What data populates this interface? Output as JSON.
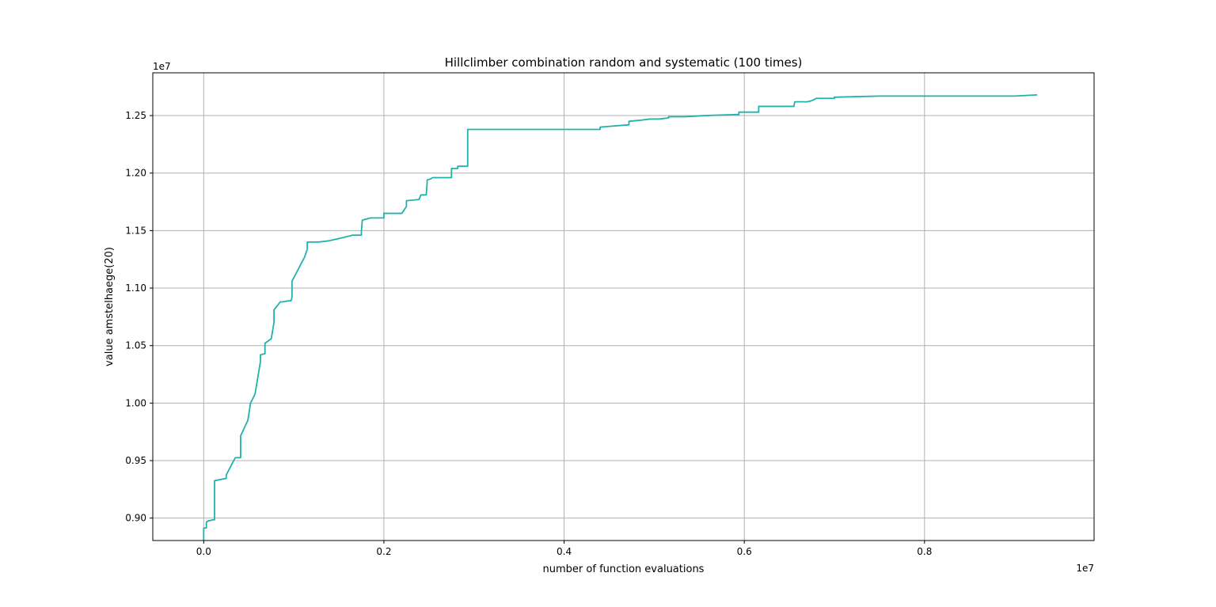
{
  "chart_data": {
    "type": "line",
    "title": "Hillclimber combination random and systematic (100 times)",
    "xlabel": "number of function evaluations",
    "ylabel": "value amstelhaege(20)",
    "x_offset_label": "1e7",
    "y_offset_label": "1e7",
    "x_scale": "linear",
    "y_scale": "linear",
    "xlim": [
      -0.0565,
      0.9882
    ],
    "ylim": [
      0.8805,
      1.2872
    ],
    "grid": true,
    "legend": "none",
    "x_ticks": [
      {
        "value": 0.0,
        "label": "0.0"
      },
      {
        "value": 0.2,
        "label": "0.2"
      },
      {
        "value": 0.4,
        "label": "0.4"
      },
      {
        "value": 0.6,
        "label": "0.6"
      },
      {
        "value": 0.8,
        "label": "0.8"
      }
    ],
    "y_ticks": [
      {
        "value": 0.9,
        "label": "0.90"
      },
      {
        "value": 0.95,
        "label": "0.95"
      },
      {
        "value": 1.0,
        "label": "1.00"
      },
      {
        "value": 1.05,
        "label": "1.05"
      },
      {
        "value": 1.1,
        "label": "1.10"
      },
      {
        "value": 1.15,
        "label": "1.15"
      },
      {
        "value": 1.2,
        "label": "1.20"
      },
      {
        "value": 1.25,
        "label": "1.25"
      }
    ],
    "line_color": "#20b2aa",
    "series": [
      {
        "x": [
          0.0,
          0.0,
          0.003,
          0.003,
          0.005,
          0.01,
          0.012,
          0.012,
          0.012,
          0.025,
          0.025,
          0.035,
          0.041,
          0.041,
          0.041,
          0.049,
          0.052,
          0.052,
          0.057,
          0.063,
          0.063,
          0.068,
          0.068,
          0.075,
          0.078,
          0.078,
          0.085,
          0.087,
          0.095,
          0.097,
          0.098,
          0.098,
          0.104,
          0.112,
          0.115,
          0.115,
          0.127,
          0.138,
          0.138,
          0.155,
          0.165,
          0.175,
          0.175,
          0.176,
          0.185,
          0.19,
          0.2,
          0.2,
          0.2,
          0.22,
          0.225,
          0.225,
          0.239,
          0.241,
          0.241,
          0.247,
          0.248,
          0.248,
          0.252,
          0.254,
          0.255,
          0.275,
          0.275,
          0.282,
          0.282,
          0.293,
          0.293,
          0.3,
          0.44,
          0.44,
          0.472,
          0.472,
          0.485,
          0.495,
          0.505,
          0.516,
          0.516,
          0.535,
          0.556,
          0.556,
          0.594,
          0.594,
          0.616,
          0.616,
          0.655,
          0.656,
          0.67,
          0.675,
          0.68,
          0.7,
          0.7,
          0.75,
          0.8,
          0.85,
          0.9,
          0.925
        ],
        "y": [
          0.8805,
          0.8912,
          0.8915,
          0.8965,
          0.8975,
          0.8985,
          0.8985,
          0.9325,
          0.9325,
          0.9345,
          0.9375,
          0.9525,
          0.9525,
          0.9715,
          0.9715,
          0.985,
          1.0,
          1.0,
          1.008,
          1.036,
          1.042,
          1.043,
          1.052,
          1.056,
          1.07,
          1.081,
          1.088,
          1.088,
          1.089,
          1.089,
          1.092,
          1.106,
          1.115,
          1.127,
          1.134,
          1.14,
          1.14,
          1.141,
          1.141,
          1.144,
          1.146,
          1.146,
          1.149,
          1.159,
          1.161,
          1.161,
          1.161,
          1.165,
          1.165,
          1.165,
          1.171,
          1.176,
          1.177,
          1.181,
          1.181,
          1.181,
          1.192,
          1.194,
          1.195,
          1.196,
          1.196,
          1.196,
          1.204,
          1.204,
          1.206,
          1.206,
          1.238,
          1.238,
          1.238,
          1.24,
          1.242,
          1.245,
          1.246,
          1.247,
          1.247,
          1.248,
          1.249,
          1.249,
          1.25,
          1.25,
          1.251,
          1.253,
          1.253,
          1.258,
          1.258,
          1.262,
          1.262,
          1.263,
          1.265,
          1.265,
          1.266,
          1.267,
          1.267,
          1.267,
          1.267,
          1.268
        ]
      }
    ]
  }
}
